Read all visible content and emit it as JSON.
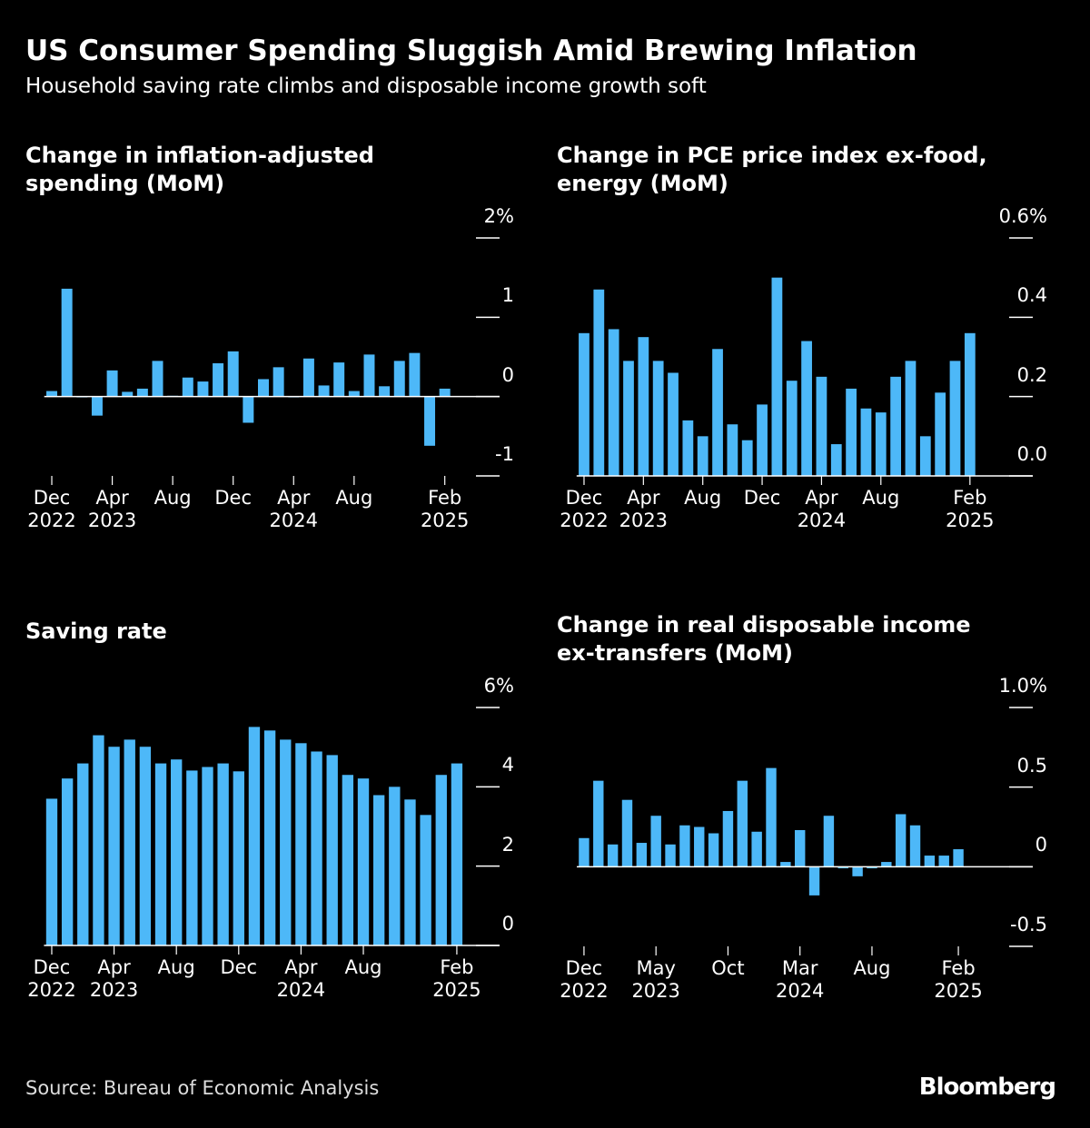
{
  "header": {
    "title": "US Consumer Spending Sluggish Amid Brewing Inflation",
    "subtitle": "Household saving rate climbs and disposable income growth soft"
  },
  "footer": {
    "source": "Source: Bureau of Economic Analysis",
    "brand": "Bloomberg"
  },
  "chart_data": [
    {
      "type": "bar",
      "title": "Change in inflation-adjusted spending (MoM)",
      "color": "#4db8f8",
      "categories": [
        "Dec 2022",
        null,
        null,
        null,
        "Apr 2023",
        null,
        null,
        null,
        "Aug",
        null,
        null,
        null,
        "Dec",
        null,
        null,
        null,
        "Apr 2024",
        null,
        null,
        null,
        "Aug",
        null,
        null,
        null,
        null,
        null,
        "Feb 2025"
      ],
      "values": [
        0.07,
        1.36,
        -0.01,
        -0.24,
        0.33,
        0.06,
        0.1,
        0.45,
        0.01,
        0.24,
        0.19,
        0.42,
        0.57,
        -0.33,
        0.22,
        0.37,
        -0.01,
        0.48,
        0.14,
        0.43,
        0.07,
        0.53,
        0.13,
        0.45,
        0.55,
        -0.62,
        0.1
      ],
      "ylim": [
        -1,
        2
      ],
      "yticks": [
        -1,
        0,
        1,
        {
          "value": 2,
          "label": "2%"
        }
      ]
    },
    {
      "type": "bar",
      "title": "Change in PCE price index ex-food, energy (MoM)",
      "color": "#4db8f8",
      "categories": [
        "Dec 2022",
        null,
        null,
        null,
        "Apr 2023",
        null,
        null,
        null,
        "Aug",
        null,
        null,
        null,
        "Dec",
        null,
        null,
        null,
        "Apr 2024",
        null,
        null,
        null,
        "Aug",
        null,
        null,
        null,
        null,
        null,
        "Feb 2025"
      ],
      "values": [
        0.36,
        0.47,
        0.37,
        0.29,
        0.35,
        0.29,
        0.26,
        0.14,
        0.1,
        0.32,
        0.13,
        0.09,
        0.18,
        0.5,
        0.24,
        0.34,
        0.25,
        0.08,
        0.22,
        0.17,
        0.16,
        0.25,
        0.29,
        0.1,
        0.21,
        0.29,
        0.36
      ],
      "ylim": [
        0,
        0.6
      ],
      "yticks": [
        {
          "value": 0,
          "label": "0.0"
        },
        0.2,
        0.4,
        {
          "value": 0.6,
          "label": "0.6%"
        }
      ]
    },
    {
      "type": "bar",
      "title": "Saving rate",
      "color": "#4db8f8",
      "categories": [
        "Dec 2022",
        null,
        null,
        null,
        "Apr 2023",
        null,
        null,
        null,
        "Aug",
        null,
        null,
        null,
        "Dec",
        null,
        null,
        null,
        "Apr 2024",
        null,
        null,
        null,
        "Aug",
        null,
        null,
        null,
        null,
        null,
        "Feb 2025"
      ],
      "values": [
        3.7,
        4.21,
        4.59,
        5.3,
        5.01,
        5.19,
        5.01,
        4.59,
        4.69,
        4.41,
        4.5,
        4.59,
        4.39,
        5.51,
        5.42,
        5.19,
        5.1,
        4.89,
        4.8,
        4.3,
        4.21,
        3.79,
        4.0,
        3.68,
        3.29,
        4.3,
        4.59
      ],
      "ylim": [
        0,
        6
      ],
      "yticks": [
        0,
        2,
        4,
        {
          "value": 6,
          "label": "6%"
        }
      ]
    },
    {
      "type": "bar",
      "title": "Change in real disposable income ex-transfers (MoM)",
      "color": "#4db8f8",
      "categories": [
        "Dec 2022",
        null,
        null,
        null,
        null,
        "May 2023",
        null,
        null,
        null,
        null,
        "Oct",
        null,
        null,
        null,
        null,
        "Mar 2024",
        null,
        null,
        null,
        null,
        "Aug",
        null,
        null,
        null,
        null,
        null,
        "Feb 2025"
      ],
      "values": [
        0.18,
        0.54,
        0.14,
        0.42,
        0.15,
        0.32,
        0.14,
        0.26,
        0.25,
        0.21,
        0.35,
        0.54,
        0.22,
        0.62,
        0.03,
        0.23,
        -0.18,
        0.32,
        -0.01,
        -0.06,
        -0.01,
        0.03,
        0.33,
        0.26,
        0.07,
        0.07,
        0.11
      ],
      "ylim": [
        -0.5,
        1.0
      ],
      "yticks": [
        -0.5,
        0,
        0.5,
        {
          "value": 1.0,
          "label": "1.0%"
        }
      ]
    }
  ]
}
